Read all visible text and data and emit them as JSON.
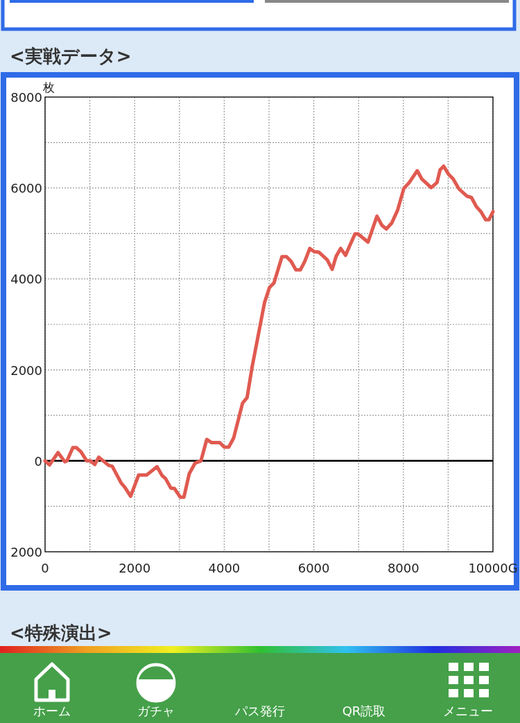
{
  "chart_data": {
    "type": "line",
    "title": "<実戦データ>",
    "ylabel": "枚",
    "x": [
      0,
      100,
      290,
      440,
      490,
      620,
      700,
      800,
      930,
      1010,
      1110,
      1200,
      1420,
      1500,
      1700,
      1780,
      1910,
      2090,
      2270,
      2500,
      2610,
      2690,
      2810,
      2890,
      3020,
      3100,
      3220,
      3350,
      3480,
      3610,
      3720,
      3900,
      4000,
      4100,
      4210,
      4410,
      4510,
      4620,
      4900,
      5010,
      5110,
      5290,
      5390,
      5490,
      5600,
      5700,
      5800,
      5910,
      6010,
      6110,
      6300,
      6410,
      6500,
      6600,
      6710,
      6810,
      6920,
      6990,
      7210,
      7410,
      7520,
      7620,
      7740,
      7870,
      8010,
      8130,
      8310,
      8410,
      8620,
      8750,
      8820,
      8900,
      9010,
      9110,
      9240,
      9420,
      9520,
      9630,
      9730,
      9840,
      9910,
      10000
    ],
    "series": [
      {
        "color": "#e05a50",
        "values": [
          0,
          -90,
          180,
          -20,
          0,
          290,
          290,
          200,
          0,
          0,
          -80,
          80,
          -100,
          -120,
          -490,
          -580,
          -780,
          -310,
          -310,
          -130,
          -320,
          -390,
          -600,
          -610,
          -800,
          -800,
          -280,
          -50,
          0,
          470,
          400,
          400,
          300,
          300,
          500,
          1270,
          1390,
          2050,
          3480,
          3810,
          3910,
          4490,
          4490,
          4390,
          4200,
          4200,
          4390,
          4670,
          4600,
          4590,
          4420,
          4210,
          4500,
          4670,
          4520,
          4750,
          4990,
          4990,
          4810,
          5380,
          5180,
          5100,
          5230,
          5510,
          5990,
          6120,
          6380,
          6200,
          6010,
          6120,
          6400,
          6480,
          6300,
          6200,
          5980,
          5820,
          5790,
          5590,
          5480,
          5300,
          5300,
          5480
        ]
      }
    ],
    "xlim": [
      0,
      10000
    ],
    "ylim": [
      -2000,
      8000
    ],
    "xticks": [
      0,
      {
        "value": 1000,
        "label": null
      },
      2000,
      {
        "value": 3000,
        "label": null
      },
      4000,
      {
        "value": 5000,
        "label": null
      },
      6000,
      {
        "value": 7000,
        "label": null
      },
      8000,
      {
        "value": 9000,
        "label": null
      },
      {
        "value": 10000,
        "label": "10000G"
      }
    ],
    "yticks": [
      {
        "value": -2000,
        "label": "2000"
      },
      {
        "value": -1000,
        "label": null
      },
      0,
      {
        "value": 1000,
        "label": null
      },
      2000,
      {
        "value": 3000,
        "label": null
      },
      4000,
      {
        "value": 5000,
        "label": null
      },
      6000,
      {
        "value": 7000,
        "label": null
      },
      8000
    ],
    "grid": true,
    "ref_lines": [
      {
        "axis": "y",
        "value": 0,
        "color": "#000000"
      }
    ],
    "annotations": [
      "<特殊演出>",
      "ホーム",
      "ガチャ",
      "パス発行",
      "QR読取",
      "メニュー"
    ]
  }
}
